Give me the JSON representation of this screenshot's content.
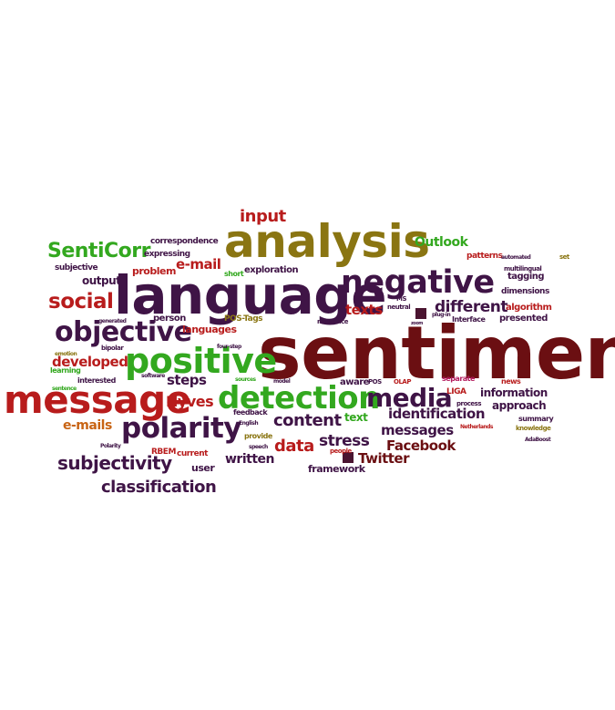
{
  "colors": {
    "green": "#33a81f",
    "olive": "#8a7512",
    "purple": "#3f1446",
    "maroon": "#6b0f12",
    "red": "#b81c1c",
    "orange": "#c86414",
    "pink": "#b41a5c",
    "navy": "#2a2354"
  },
  "words": [
    {
      "text": "sentiment",
      "color": "maroon"
    },
    {
      "text": "language",
      "color": "purple"
    },
    {
      "text": "analysis",
      "color": "olive"
    },
    {
      "text": "message",
      "color": "red"
    },
    {
      "text": "negative",
      "color": "purple"
    },
    {
      "text": "positive",
      "color": "green"
    },
    {
      "text": "detection",
      "color": "green"
    },
    {
      "text": "polarity",
      "color": "purple"
    },
    {
      "text": "objective",
      "color": "purple"
    },
    {
      "text": "media",
      "color": "purple"
    },
    {
      "text": "social",
      "color": "red"
    },
    {
      "text": "SentiCorr",
      "color": "green"
    },
    {
      "text": "input",
      "color": "red"
    },
    {
      "text": "different",
      "color": "purple"
    },
    {
      "text": "subjectivity",
      "color": "purple"
    },
    {
      "text": "classification",
      "color": "purple"
    },
    {
      "text": "content",
      "color": "purple"
    },
    {
      "text": "data",
      "color": "red"
    },
    {
      "text": "stress",
      "color": "purple"
    },
    {
      "text": "identification",
      "color": "purple"
    },
    {
      "text": "messages",
      "color": "purple"
    },
    {
      "text": "Facebook",
      "color": "maroon"
    },
    {
      "text": "Twitter",
      "color": "maroon"
    },
    {
      "text": "written",
      "color": "purple"
    },
    {
      "text": "developed",
      "color": "red"
    },
    {
      "text": "e-mails",
      "color": "orange"
    },
    {
      "text": "Hyves",
      "color": "red"
    },
    {
      "text": "steps",
      "color": "purple"
    },
    {
      "text": "texts",
      "color": "red"
    },
    {
      "text": "e-mail",
      "color": "red"
    },
    {
      "text": "Outlook",
      "color": "green"
    },
    {
      "text": "information",
      "color": "purple"
    },
    {
      "text": "approach",
      "color": "purple"
    },
    {
      "text": "text",
      "color": "green"
    },
    {
      "text": "output",
      "color": "purple"
    },
    {
      "text": "problem",
      "color": "red"
    },
    {
      "text": "languages",
      "color": "red"
    },
    {
      "text": "framework",
      "color": "purple"
    },
    {
      "text": "user",
      "color": "purple"
    },
    {
      "text": "person",
      "color": "purple"
    },
    {
      "text": "exploration",
      "color": "purple"
    },
    {
      "text": "expressing",
      "color": "purple"
    },
    {
      "text": "correspondence",
      "color": "purple"
    },
    {
      "text": "subjective",
      "color": "purple"
    },
    {
      "text": "patterns",
      "color": "red"
    },
    {
      "text": "tagging",
      "color": "purple"
    },
    {
      "text": "dimensions",
      "color": "purple"
    },
    {
      "text": "algorithm",
      "color": "red"
    },
    {
      "text": "presented",
      "color": "purple"
    },
    {
      "text": "Interface",
      "color": "purple"
    },
    {
      "text": "plug-in",
      "color": "purple"
    },
    {
      "text": "neutral",
      "color": "purple"
    },
    {
      "text": "relevance",
      "color": "purple"
    },
    {
      "text": "POS-Tags",
      "color": "olive"
    },
    {
      "text": "generated",
      "color": "purple"
    },
    {
      "text": "emotion",
      "color": "olive"
    },
    {
      "text": "bipolar",
      "color": "purple"
    },
    {
      "text": "four-step",
      "color": "purple"
    },
    {
      "text": "learning",
      "color": "green"
    },
    {
      "text": "interested",
      "color": "purple"
    },
    {
      "text": "software",
      "color": "purple"
    },
    {
      "text": "sources",
      "color": "green"
    },
    {
      "text": "model",
      "color": "purple"
    },
    {
      "text": "aware",
      "color": "purple"
    },
    {
      "text": "POS",
      "color": "purple"
    },
    {
      "text": "OLAP",
      "color": "red"
    },
    {
      "text": "separate",
      "color": "pink"
    },
    {
      "text": "news",
      "color": "red"
    },
    {
      "text": "LIGA",
      "color": "red"
    },
    {
      "text": "process",
      "color": "purple"
    },
    {
      "text": "summary",
      "color": "purple"
    },
    {
      "text": "knowledge",
      "color": "olive"
    },
    {
      "text": "Netherlands",
      "color": "red"
    },
    {
      "text": "AdaBoost",
      "color": "purple"
    },
    {
      "text": "feedback",
      "color": "purple"
    },
    {
      "text": "English",
      "color": "purple"
    },
    {
      "text": "provide",
      "color": "olive"
    },
    {
      "text": "speech",
      "color": "purple"
    },
    {
      "text": "people",
      "color": "red"
    },
    {
      "text": "sentence",
      "color": "green"
    },
    {
      "text": "Polarity",
      "color": "purple"
    },
    {
      "text": "RBEM",
      "color": "red"
    },
    {
      "text": "current",
      "color": "red"
    },
    {
      "text": "short",
      "color": "green"
    },
    {
      "text": "MS",
      "color": "purple"
    },
    {
      "text": "automated",
      "color": "purple"
    },
    {
      "text": "set",
      "color": "olive"
    },
    {
      "text": "multilingual",
      "color": "purple"
    },
    {
      "text": "zoom",
      "color": "purple"
    }
  ]
}
